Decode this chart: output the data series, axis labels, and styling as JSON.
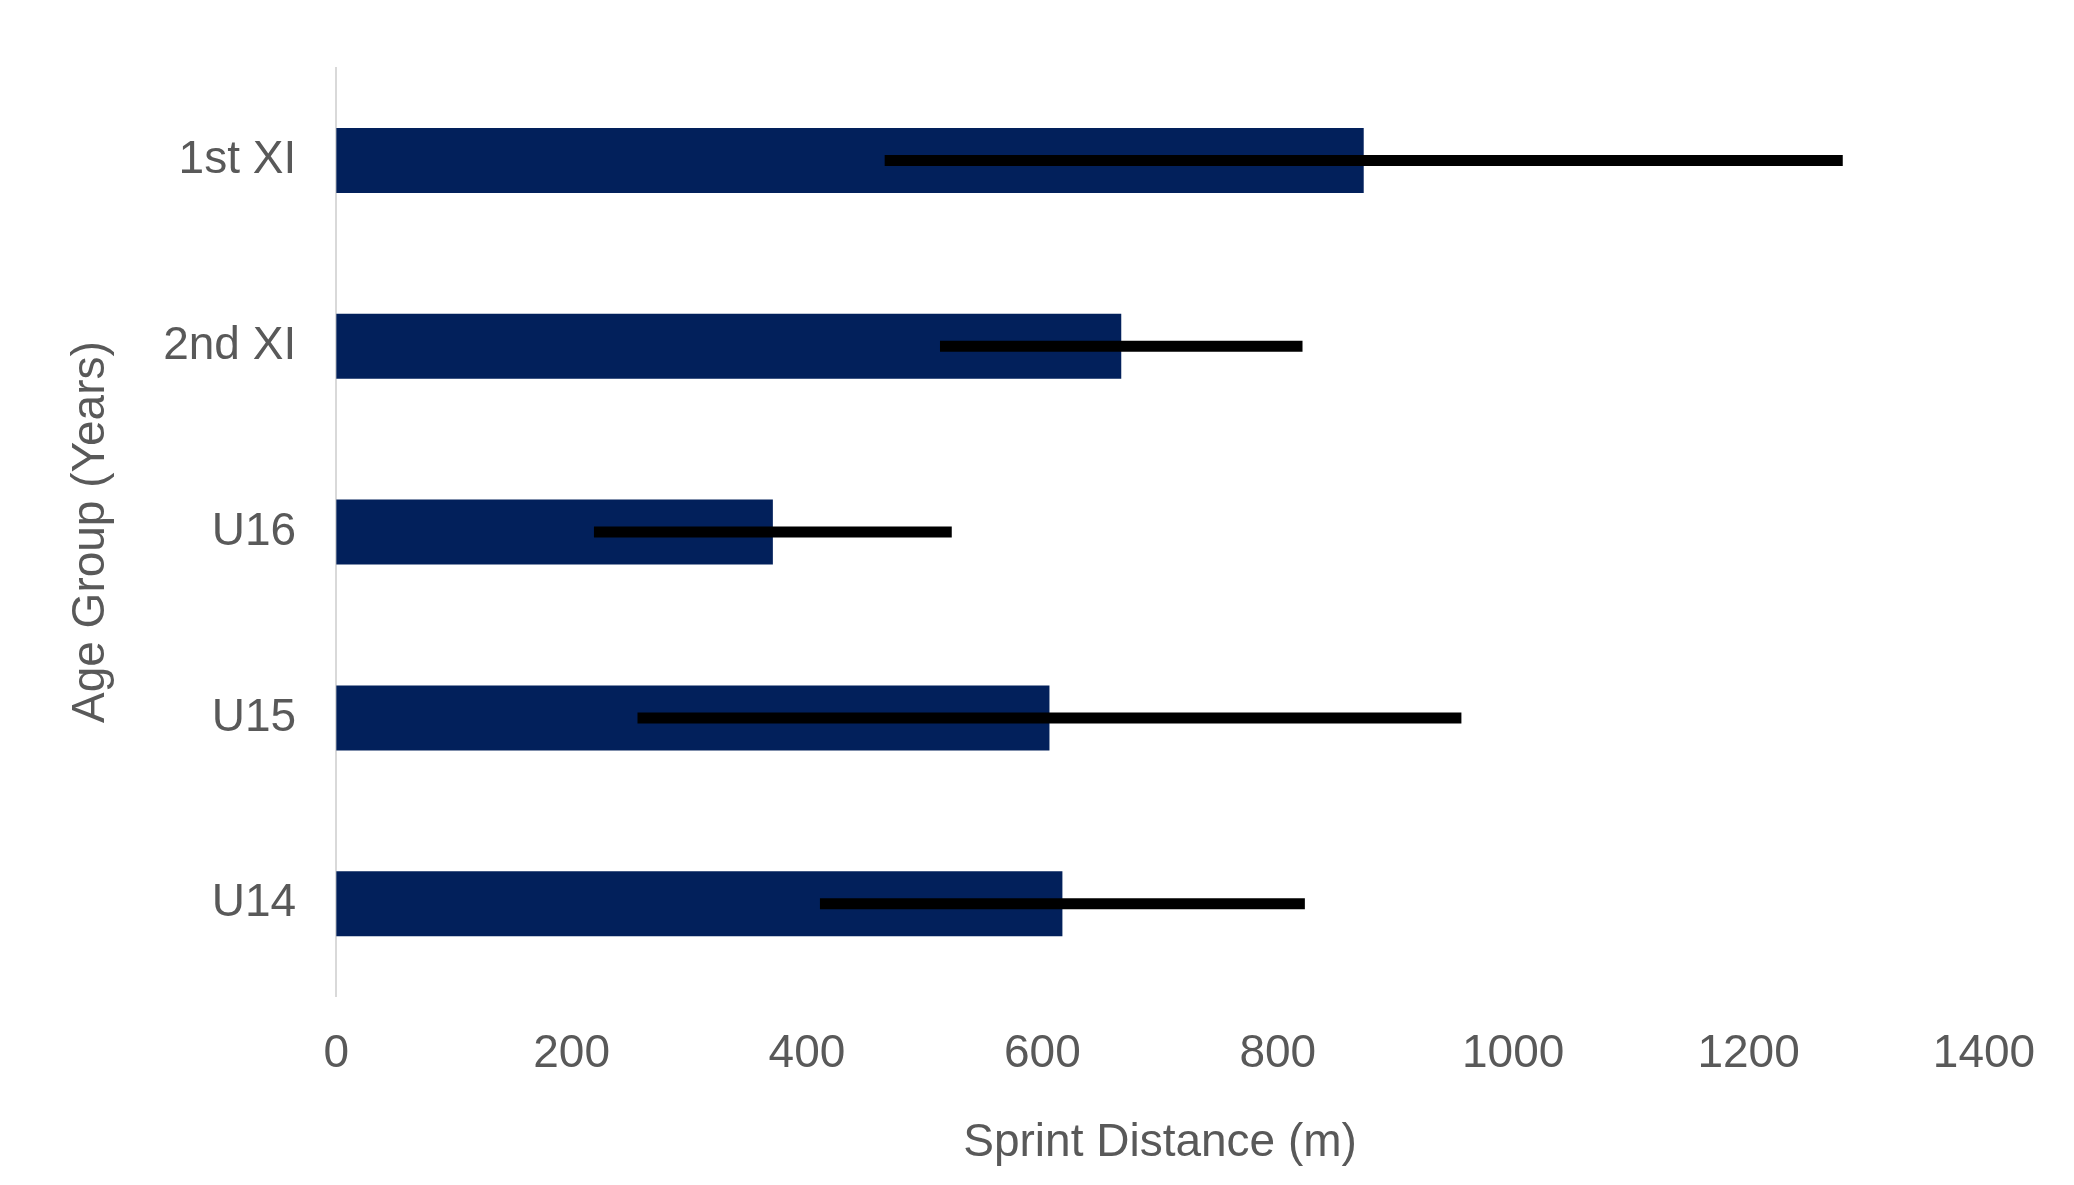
{
  "chart_data": {
    "type": "bar",
    "orientation": "horizontal",
    "xlabel": "Sprint Distance (m)",
    "ylabel": "Age Group (Years)",
    "categories": [
      "1st XI",
      "2nd XI",
      "U16",
      "U15",
      "U14"
    ],
    "series": [
      {
        "color": "#02205b",
        "values": [
          873,
          667,
          371,
          606,
          617
        ],
        "errors": [
          407,
          154,
          152,
          350,
          206
        ]
      }
    ],
    "xlim": [
      0,
      1400
    ],
    "xticks": [
      0,
      200,
      400,
      600,
      800,
      1000,
      1200,
      1400
    ],
    "grid": false,
    "legend": false
  }
}
